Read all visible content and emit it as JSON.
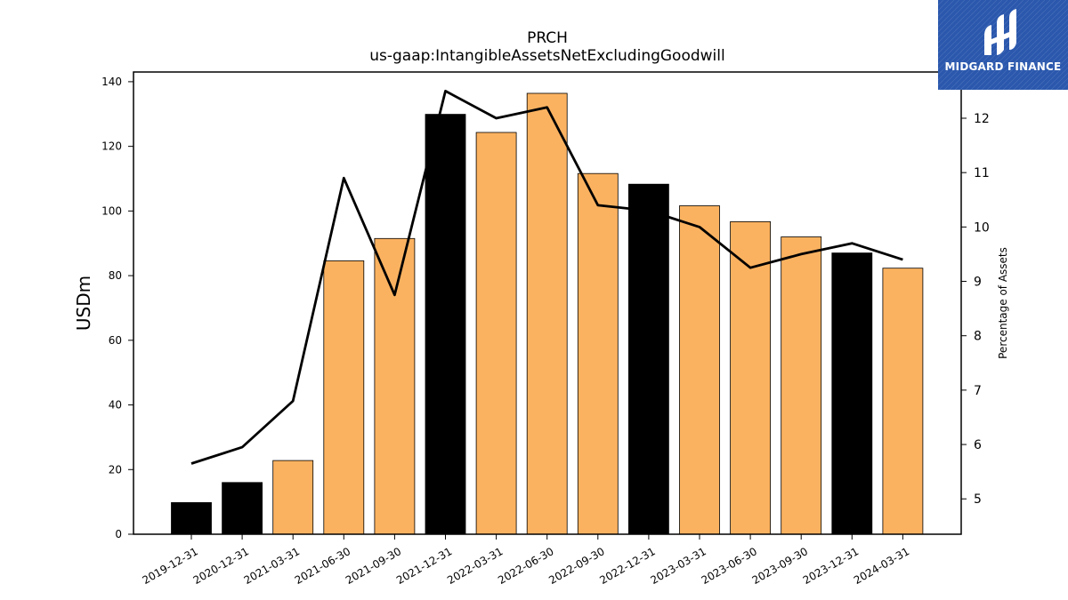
{
  "chart_data": {
    "type": "bar",
    "title": "PRCH",
    "subtitle": "us-gaap:IntangibleAssetsNetExcludingGoodwill",
    "ylabel": "USDm",
    "y2label": "Percentage of Assets",
    "categories": [
      "2019-12-31",
      "2020-12-31",
      "2021-03-31",
      "2021-06-30",
      "2021-09-30",
      "2021-12-31",
      "2022-03-31",
      "2022-06-30",
      "2022-09-30",
      "2022-12-31",
      "2023-03-31",
      "2023-06-30",
      "2023-09-30",
      "2023-12-31",
      "2024-03-31"
    ],
    "series": [
      {
        "type": "bar",
        "values": [
          9.8,
          16.0,
          22.8,
          84.6,
          91.5,
          129.9,
          124.3,
          136.4,
          111.6,
          108.3,
          101.6,
          96.7,
          92.0,
          87.0,
          82.3
        ]
      },
      {
        "type": "line",
        "axis": "right",
        "values": [
          5.65,
          5.95,
          6.8,
          10.9,
          8.75,
          12.5,
          12.0,
          12.2,
          10.4,
          10.3,
          10.0,
          9.25,
          9.5,
          9.7,
          9.4
        ]
      }
    ],
    "bar_colors": [
      "#000000",
      "#000000",
      "#fbb260",
      "#fbb260",
      "#fbb260",
      "#000000",
      "#fbb260",
      "#fbb260",
      "#fbb260",
      "#000000",
      "#fbb260",
      "#fbb260",
      "#fbb260",
      "#000000",
      "#fbb260"
    ],
    "line_color": "#000000",
    "ylim": [
      0,
      143
    ],
    "yticks": [
      0,
      20,
      40,
      60,
      80,
      100,
      120,
      140
    ],
    "y2lim": [
      4.35,
      12.85
    ],
    "y2ticks": [
      5,
      6,
      7,
      8,
      9,
      10,
      11,
      12
    ],
    "grid": false
  },
  "logo": {
    "text": "MIDGARD FINANCE",
    "background": "#2b58ad"
  }
}
